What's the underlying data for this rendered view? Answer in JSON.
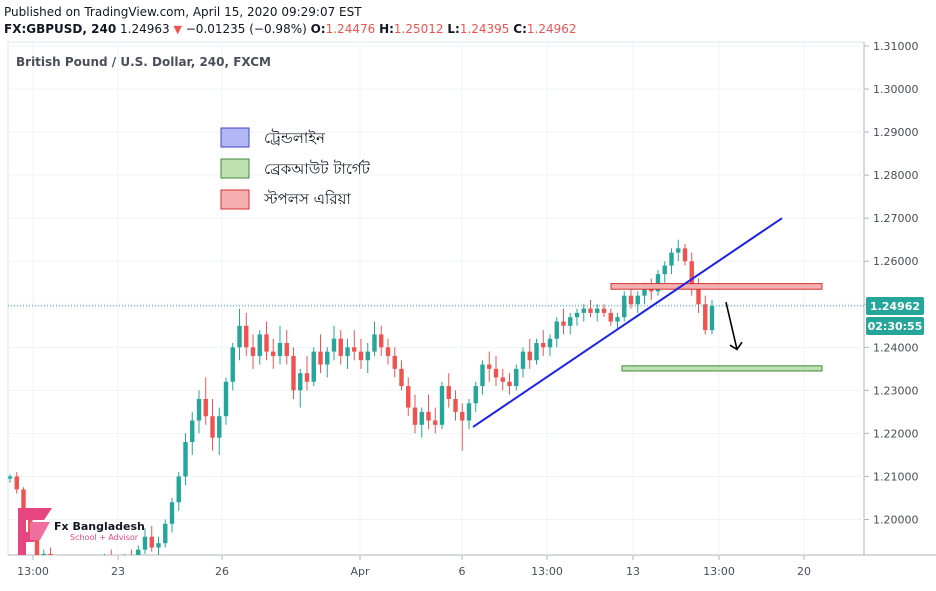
{
  "header": {
    "published": "Published on TradingView.com, April 15, 2020 09:29:07 EST",
    "symbol": "FX:GBPUSD, 240",
    "last": "1.24963",
    "change": "−0.01235 (−0.98%)",
    "open_label": "O:",
    "open": "1.24476",
    "high_label": "H:",
    "high": "1.25012",
    "low_label": "L:",
    "low": "1.24395",
    "close_label": "C:",
    "close": "1.24962"
  },
  "chart_data": {
    "type": "candlestick",
    "title": "British Pound / U.S. Dollar, 240, FXCM",
    "y_ticks": [
      "1.31000",
      "1.30000",
      "1.29000",
      "1.28000",
      "1.27000",
      "1.26000",
      "1.25000",
      "1.24000",
      "1.23000",
      "1.22000",
      "1.21000",
      "1.20000"
    ],
    "y_values": [
      1.31,
      1.3,
      1.29,
      1.28,
      1.27,
      1.26,
      1.25,
      1.24,
      1.23,
      1.22,
      1.21,
      1.2
    ],
    "ylim": [
      1.1915,
      1.3115
    ],
    "x_ticks": [
      "13:00",
      "23",
      "26",
      "Apr",
      "6",
      "13:00",
      "13",
      "13:00",
      "20"
    ],
    "last_price_label": "1.24962",
    "countdown_label": "02:30:55",
    "legend": [
      {
        "name": "ট্রেন্ডলাইন",
        "color": "#b3b7f5"
      },
      {
        "name": "ব্রেকআউট টার্গেট",
        "color": "#bfe0b1"
      },
      {
        "name": "স্টপলস এরিয়া",
        "color": "#f7b0b0"
      }
    ],
    "trendline": {
      "from": [
        "6",
        1.2215
      ],
      "to": [
        "20",
        1.27
      ]
    },
    "stoploss_zone": {
      "low": 1.2535,
      "high": 1.2548
    },
    "target_zone": {
      "low": 1.2345,
      "high": 1.2357
    },
    "candles_ohlc": [
      [
        1.2095,
        1.2105,
        1.2085,
        1.21
      ],
      [
        1.21,
        1.211,
        1.206,
        1.207
      ],
      [
        1.207,
        1.2075,
        1.201,
        1.202
      ],
      [
        1.202,
        1.2025,
        1.195,
        1.196
      ],
      [
        1.196,
        1.197,
        1.19,
        1.191
      ],
      [
        1.191,
        1.193,
        1.188,
        1.192
      ],
      [
        1.192,
        1.1935,
        1.189,
        1.19
      ],
      [
        1.19,
        1.1915,
        1.187,
        1.189
      ],
      [
        1.189,
        1.191,
        1.186,
        1.188
      ],
      [
        1.188,
        1.19,
        1.186,
        1.187
      ],
      [
        1.187,
        1.189,
        1.185,
        1.188
      ],
      [
        1.188,
        1.19,
        1.186,
        1.187
      ],
      [
        1.187,
        1.189,
        1.185,
        1.186
      ],
      [
        1.186,
        1.19,
        1.185,
        1.188
      ],
      [
        1.188,
        1.192,
        1.187,
        1.19
      ],
      [
        1.19,
        1.193,
        1.188,
        1.189
      ],
      [
        1.189,
        1.191,
        1.187,
        1.188
      ],
      [
        1.188,
        1.192,
        1.187,
        1.191
      ],
      [
        1.191,
        1.193,
        1.189,
        1.19
      ],
      [
        1.19,
        1.194,
        1.188,
        1.193
      ],
      [
        1.193,
        1.198,
        1.192,
        1.196
      ],
      [
        1.196,
        1.1985,
        1.1925,
        1.1935
      ],
      [
        1.1935,
        1.196,
        1.1905,
        1.1945
      ],
      [
        1.1945,
        1.2,
        1.1935,
        1.199
      ],
      [
        1.199,
        1.205,
        1.197,
        1.204
      ],
      [
        1.204,
        1.211,
        1.202,
        1.21
      ],
      [
        1.21,
        1.22,
        1.208,
        1.218
      ],
      [
        1.218,
        1.225,
        1.215,
        1.223
      ],
      [
        1.223,
        1.23,
        1.22,
        1.228
      ],
      [
        1.228,
        1.233,
        1.222,
        1.224
      ],
      [
        1.224,
        1.228,
        1.216,
        1.219
      ],
      [
        1.219,
        1.226,
        1.215,
        1.224
      ],
      [
        1.224,
        1.233,
        1.222,
        1.232
      ],
      [
        1.232,
        1.241,
        1.23,
        1.24
      ],
      [
        1.24,
        1.249,
        1.237,
        1.245
      ],
      [
        1.245,
        1.248,
        1.238,
        1.24
      ],
      [
        1.24,
        1.243,
        1.235,
        1.238
      ],
      [
        1.238,
        1.244,
        1.236,
        1.243
      ],
      [
        1.243,
        1.246,
        1.237,
        1.239
      ],
      [
        1.239,
        1.242,
        1.235,
        1.238
      ],
      [
        1.238,
        1.245,
        1.236,
        1.241
      ],
      [
        1.241,
        1.244,
        1.236,
        1.238
      ],
      [
        1.238,
        1.24,
        1.228,
        1.23
      ],
      [
        1.23,
        1.235,
        1.226,
        1.234
      ],
      [
        1.234,
        1.238,
        1.23,
        1.232
      ],
      [
        1.232,
        1.24,
        1.231,
        1.239
      ],
      [
        1.239,
        1.243,
        1.234,
        1.236
      ],
      [
        1.236,
        1.24,
        1.233,
        1.239
      ],
      [
        1.239,
        1.245,
        1.237,
        1.242
      ],
      [
        1.242,
        1.244,
        1.236,
        1.238
      ],
      [
        1.238,
        1.242,
        1.235,
        1.24
      ],
      [
        1.24,
        1.244,
        1.237,
        1.239
      ],
      [
        1.239,
        1.242,
        1.235,
        1.237
      ],
      [
        1.237,
        1.241,
        1.234,
        1.239
      ],
      [
        1.239,
        1.246,
        1.238,
        1.243
      ],
      [
        1.243,
        1.245,
        1.238,
        1.24
      ],
      [
        1.24,
        1.242,
        1.236,
        1.238
      ],
      [
        1.238,
        1.24,
        1.233,
        1.235
      ],
      [
        1.235,
        1.237,
        1.23,
        1.231
      ],
      [
        1.231,
        1.233,
        1.224,
        1.226
      ],
      [
        1.226,
        1.229,
        1.22,
        1.222
      ],
      [
        1.222,
        1.226,
        1.219,
        1.225
      ],
      [
        1.225,
        1.229,
        1.221,
        1.223
      ],
      [
        1.223,
        1.226,
        1.22,
        1.222
      ],
      [
        1.222,
        1.232,
        1.221,
        1.231
      ],
      [
        1.231,
        1.234,
        1.226,
        1.228
      ],
      [
        1.228,
        1.23,
        1.223,
        1.225
      ],
      [
        1.225,
        1.227,
        1.216,
        1.223
      ],
      [
        1.223,
        1.228,
        1.221,
        1.227
      ],
      [
        1.227,
        1.232,
        1.225,
        1.231
      ],
      [
        1.231,
        1.237,
        1.229,
        1.236
      ],
      [
        1.236,
        1.239,
        1.232,
        1.235
      ],
      [
        1.235,
        1.238,
        1.231,
        1.233
      ],
      [
        1.233,
        1.235,
        1.23,
        1.232
      ],
      [
        1.232,
        1.234,
        1.229,
        1.231
      ],
      [
        1.231,
        1.236,
        1.23,
        1.235
      ],
      [
        1.235,
        1.24,
        1.233,
        1.239
      ],
      [
        1.239,
        1.242,
        1.235,
        1.237
      ],
      [
        1.237,
        1.242,
        1.236,
        1.241
      ],
      [
        1.241,
        1.244,
        1.238,
        1.24
      ],
      [
        1.24,
        1.243,
        1.238,
        1.242
      ],
      [
        1.242,
        1.247,
        1.24,
        1.246
      ],
      [
        1.246,
        1.249,
        1.243,
        1.245
      ],
      [
        1.245,
        1.248,
        1.243,
        1.247
      ],
      [
        1.247,
        1.249,
        1.245,
        1.248
      ],
      [
        1.248,
        1.25,
        1.246,
        1.249
      ],
      [
        1.249,
        1.251,
        1.247,
        1.248
      ],
      [
        1.248,
        1.25,
        1.246,
        1.249
      ],
      [
        1.249,
        1.25,
        1.247,
        1.248
      ],
      [
        1.248,
        1.249,
        1.245,
        1.246
      ],
      [
        1.246,
        1.248,
        1.244,
        1.247
      ],
      [
        1.247,
        1.253,
        1.246,
        1.252
      ],
      [
        1.252,
        1.254,
        1.249,
        1.25
      ],
      [
        1.25,
        1.253,
        1.248,
        1.252
      ],
      [
        1.252,
        1.255,
        1.25,
        1.254
      ],
      [
        1.254,
        1.256,
        1.251,
        1.253
      ],
      [
        1.253,
        1.258,
        1.252,
        1.257
      ],
      [
        1.257,
        1.26,
        1.255,
        1.259
      ],
      [
        1.259,
        1.263,
        1.257,
        1.262
      ],
      [
        1.262,
        1.265,
        1.26,
        1.263
      ],
      [
        1.263,
        1.264,
        1.259,
        1.26
      ],
      [
        1.26,
        1.262,
        1.252,
        1.254
      ],
      [
        1.254,
        1.256,
        1.248,
        1.25
      ],
      [
        1.25,
        1.252,
        1.243,
        1.244
      ],
      [
        1.244,
        1.251,
        1.243,
        1.2496
      ]
    ]
  },
  "watermark": {
    "brand": "Fx Bangladesh",
    "tagline": "School + Advisor"
  }
}
